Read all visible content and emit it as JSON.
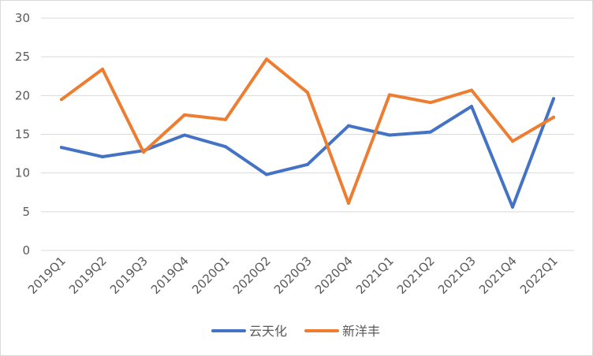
{
  "chart_data": {
    "type": "line",
    "title": "",
    "xlabel": "",
    "ylabel": "",
    "categories": [
      "2019Q1",
      "2019Q2",
      "2019Q3",
      "2019Q4",
      "2020Q1",
      "2020Q2",
      "2020Q3",
      "2020Q4",
      "2021Q1",
      "2021Q2",
      "2021Q3",
      "2021Q4",
      "2022Q1"
    ],
    "ylim": [
      0,
      30
    ],
    "yticks": [
      0,
      5,
      10,
      15,
      20,
      25,
      30
    ],
    "grid": true,
    "legend_position": "bottom",
    "series": [
      {
        "name": "云天化",
        "color": "#4472c4",
        "values": [
          13.3,
          12.1,
          12.9,
          14.9,
          13.4,
          9.8,
          11.1,
          16.1,
          14.9,
          15.3,
          18.6,
          5.6,
          19.6
        ]
      },
      {
        "name": "新洋丰",
        "color": "#ed7d31",
        "values": [
          19.5,
          23.4,
          12.7,
          17.5,
          16.9,
          24.7,
          20.4,
          6.1,
          20.1,
          19.1,
          20.7,
          14.1,
          17.2
        ]
      }
    ]
  }
}
